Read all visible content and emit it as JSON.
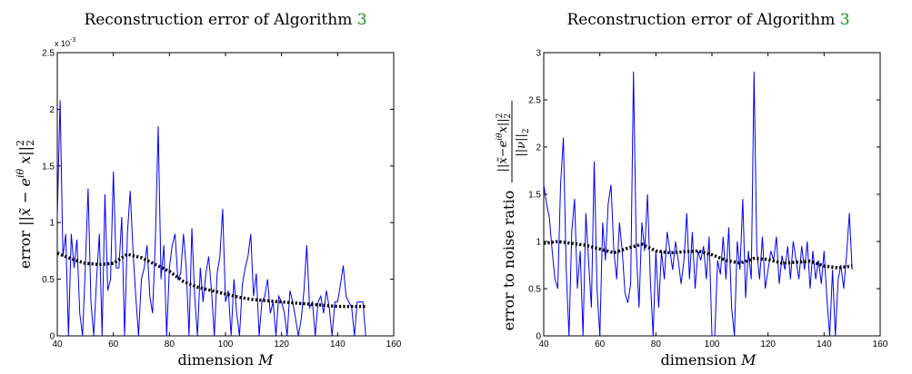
{
  "charts": [
    {
      "title": "Reconstruction error of Algorithm",
      "title_ref": "3",
      "xlabel": "dimension M",
      "ylabel": "error ||x̃ − e^{iθ} x||²₂",
      "exponent_label": "x 10",
      "exponent_power": "-3",
      "x_ticks": [
        "40",
        "60",
        "80",
        "100",
        "120",
        "140",
        "160"
      ],
      "y_ticks": [
        "0",
        "0.5",
        "1",
        "1.5",
        "2",
        "2.5"
      ]
    },
    {
      "title": "Reconstruction error of Algorithm",
      "title_ref": "3",
      "xlabel": "dimension M",
      "ylabel": "error to noise ratio ||x̃ − e^{iθ} x||²₂ / ||ν||₂",
      "x_ticks": [
        "40",
        "60",
        "80",
        "100",
        "120",
        "140",
        "160"
      ],
      "y_ticks": [
        "0",
        "0.5",
        "1",
        "1.5",
        "2",
        "2.5",
        "3"
      ]
    }
  ],
  "colors": {
    "series": "#0000ee",
    "trend": "#000000",
    "title_ref": "#1f8f1f"
  },
  "chart_data": [
    {
      "type": "line",
      "title": "Reconstruction error of Algorithm 3",
      "xlabel": "dimension M",
      "ylabel": "error ||x̃ − e^{iθ} x||²₂",
      "y_scale_factor": "x 10^-3",
      "xlim": [
        40,
        160
      ],
      "ylim": [
        0,
        2.5
      ],
      "grid": false,
      "series": [
        {
          "style": "solid-thin",
          "color": "#0000ee",
          "x": [
            40,
            41,
            42,
            43,
            44,
            45,
            46,
            47,
            48,
            49,
            50,
            51,
            52,
            53,
            54,
            55,
            56,
            57,
            58,
            59,
            60,
            61,
            62,
            63,
            64,
            65,
            66,
            67,
            68,
            69,
            70,
            71,
            72,
            73,
            74,
            75,
            76,
            77,
            78,
            79,
            80,
            81,
            82,
            83,
            84,
            85,
            86,
            87,
            88,
            89,
            90,
            91,
            92,
            93,
            94,
            95,
            96,
            97,
            98,
            99,
            100,
            101,
            102,
            103,
            104,
            105,
            106,
            107,
            108,
            109,
            110,
            111,
            112,
            113,
            114,
            115,
            116,
            117,
            118,
            119,
            120,
            121,
            122,
            123,
            124,
            125,
            126,
            127,
            128,
            129,
            130,
            131,
            132,
            133,
            134,
            135,
            136,
            137,
            138,
            139,
            140,
            141,
            142,
            143,
            144,
            145,
            146,
            147,
            148,
            149,
            150
          ],
          "y": [
            1.05,
            2.08,
            0.7,
            0.9,
            0.0,
            0.9,
            0.6,
            0.85,
            0.2,
            0.0,
            0.6,
            1.3,
            0.3,
            0.0,
            0.5,
            0.9,
            0.0,
            1.25,
            0.4,
            0.5,
            1.45,
            0.6,
            0.6,
            1.05,
            0.0,
            0.9,
            1.28,
            0.75,
            0.35,
            0.0,
            0.5,
            0.6,
            0.8,
            0.35,
            0.2,
            0.85,
            1.85,
            0.5,
            0.8,
            0.0,
            0.6,
            0.8,
            0.9,
            0.5,
            0.55,
            0.9,
            0.6,
            0.0,
            0.95,
            0.35,
            0.0,
            0.6,
            0.3,
            0.55,
            0.7,
            0.4,
            0.0,
            0.55,
            0.7,
            1.12,
            0.3,
            0.4,
            0.0,
            0.5,
            0.2,
            0.0,
            0.45,
            0.6,
            0.7,
            0.9,
            0.35,
            0.55,
            0.0,
            0.3,
            0.35,
            0.5,
            0.2,
            0.3,
            0.0,
            0.35,
            0.3,
            0.2,
            0.0,
            0.4,
            0.3,
            0.15,
            0.0,
            0.15,
            0.4,
            0.8,
            0.25,
            0.3,
            0.0,
            0.3,
            0.35,
            0.2,
            0.4,
            0.25,
            0.0,
            0.3,
            0.3,
            0.45,
            0.62,
            0.35,
            0.3,
            0.25,
            0.0,
            0.3,
            0.3,
            0.3,
            0.0
          ]
        },
        {
          "style": "dotted-thick",
          "color": "#000000",
          "x": [
            40,
            45,
            50,
            55,
            60,
            65,
            70,
            75,
            80,
            85,
            90,
            95,
            100,
            105,
            110,
            115,
            120,
            125,
            130,
            135,
            140,
            145,
            150
          ],
          "y": [
            0.73,
            0.68,
            0.64,
            0.63,
            0.64,
            0.72,
            0.69,
            0.63,
            0.57,
            0.48,
            0.43,
            0.4,
            0.37,
            0.34,
            0.32,
            0.31,
            0.3,
            0.29,
            0.28,
            0.27,
            0.26,
            0.26,
            0.26
          ]
        }
      ]
    },
    {
      "type": "line",
      "title": "Reconstruction error of Algorithm 3",
      "xlabel": "dimension M",
      "ylabel": "error to noise ratio ||x̃ − e^{iθ} x||²₂ / ||ν||₂",
      "xlim": [
        40,
        160
      ],
      "ylim": [
        0,
        3
      ],
      "grid": false,
      "series": [
        {
          "style": "solid-thin",
          "color": "#0000ee",
          "x": [
            40,
            41,
            42,
            43,
            44,
            45,
            46,
            47,
            48,
            49,
            50,
            51,
            52,
            53,
            54,
            55,
            56,
            57,
            58,
            59,
            60,
            61,
            62,
            63,
            64,
            65,
            66,
            67,
            68,
            69,
            70,
            71,
            72,
            73,
            74,
            75,
            76,
            77,
            78,
            79,
            80,
            81,
            82,
            83,
            84,
            85,
            86,
            87,
            88,
            89,
            90,
            91,
            92,
            93,
            94,
            95,
            96,
            97,
            98,
            99,
            100,
            101,
            102,
            103,
            104,
            105,
            106,
            107,
            108,
            109,
            110,
            111,
            112,
            113,
            114,
            115,
            116,
            117,
            118,
            119,
            120,
            121,
            122,
            123,
            124,
            125,
            126,
            127,
            128,
            129,
            130,
            131,
            132,
            133,
            134,
            135,
            136,
            137,
            138,
            139,
            140,
            141,
            142,
            143,
            144,
            145,
            146,
            147,
            148,
            149,
            150
          ],
          "y": [
            1.6,
            1.4,
            1.25,
            0.9,
            0.6,
            0.5,
            1.6,
            2.1,
            0.7,
            0.0,
            1.1,
            1.45,
            0.5,
            0.9,
            0.0,
            1.3,
            0.8,
            0.3,
            1.85,
            0.5,
            0.0,
            1.2,
            0.8,
            1.4,
            1.6,
            0.9,
            0.6,
            1.2,
            0.9,
            0.45,
            0.35,
            0.55,
            2.8,
            0.9,
            0.3,
            1.2,
            0.9,
            1.5,
            0.6,
            0.0,
            0.9,
            0.3,
            0.9,
            0.6,
            1.1,
            0.9,
            0.7,
            1.0,
            0.8,
            0.55,
            0.8,
            1.3,
            0.6,
            1.1,
            0.5,
            0.9,
            0.8,
            0.95,
            0.6,
            1.05,
            0.0,
            0.0,
            0.8,
            0.65,
            1.05,
            0.6,
            1.15,
            0.3,
            0.0,
            1.0,
            0.7,
            1.45,
            0.4,
            0.9,
            0.6,
            2.8,
            0.9,
            0.6,
            1.05,
            0.5,
            0.7,
            0.9,
            0.8,
            1.05,
            0.55,
            0.85,
            0.7,
            0.95,
            0.6,
            1.0,
            0.8,
            0.6,
            0.95,
            0.7,
            1.0,
            0.5,
            0.9,
            0.6,
            0.8,
            0.55,
            0.9,
            0.4,
            0.0,
            0.7,
            0.0,
            0.6,
            0.75,
            0.5,
            0.85,
            1.3,
            0.7
          ]
        },
        {
          "style": "dotted-thick",
          "color": "#000000",
          "x": [
            40,
            45,
            50,
            55,
            60,
            65,
            70,
            75,
            80,
            85,
            90,
            95,
            100,
            105,
            110,
            115,
            120,
            125,
            130,
            135,
            140,
            145,
            150
          ],
          "y": [
            0.98,
            1.0,
            0.98,
            0.96,
            0.92,
            0.88,
            0.93,
            0.97,
            0.9,
            0.88,
            0.89,
            0.9,
            0.86,
            0.8,
            0.77,
            0.82,
            0.81,
            0.77,
            0.78,
            0.79,
            0.74,
            0.72,
            0.74
          ]
        }
      ]
    }
  ]
}
